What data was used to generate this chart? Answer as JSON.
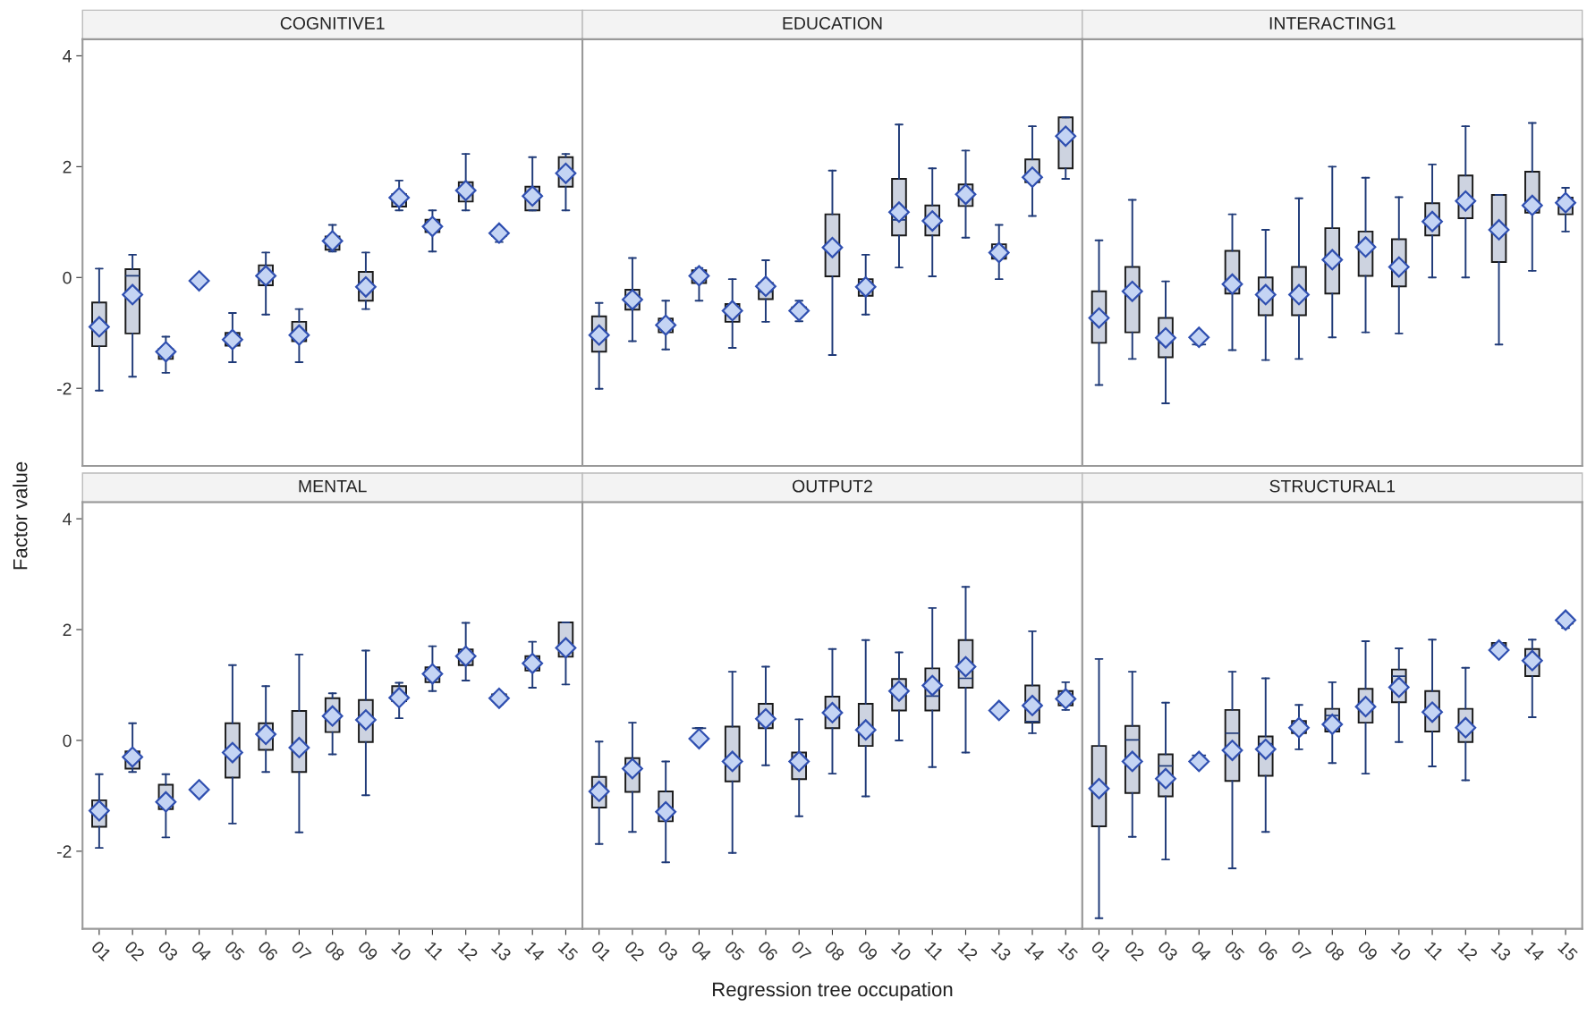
{
  "chart_data": [
    {
      "type": "box",
      "title": "COGNITIVE1",
      "ylabel": "Factor value",
      "tick_labels": "y",
      "color": "#cdd3e0",
      "marker": "diamond",
      "ylim": [
        -3.4,
        4.3
      ],
      "yticks": [
        -2,
        0,
        2,
        4
      ],
      "categories": [
        "01",
        "02",
        "03",
        "04",
        "05",
        "06",
        "07",
        "08",
        "09",
        "10",
        "11",
        "12",
        "13",
        "14",
        "15"
      ],
      "boxes": [
        {
          "low": -2.04,
          "q1": -1.24,
          "median": -0.89,
          "q3": -0.45,
          "high": 0.16,
          "mean": -0.89
        },
        {
          "low": -1.79,
          "q1": -1.01,
          "median": 0.03,
          "q3": 0.15,
          "high": 0.41,
          "mean": -0.31
        },
        {
          "low": -1.72,
          "q1": -1.47,
          "median": -1.34,
          "q3": -1.29,
          "high": -1.07,
          "mean": -1.34
        },
        {
          "low": -0.06,
          "q1": -0.06,
          "median": -0.06,
          "q3": -0.06,
          "high": -0.06,
          "mean": -0.06
        },
        {
          "low": -1.53,
          "q1": -1.23,
          "median": -1.12,
          "q3": -1.0,
          "high": -0.64,
          "mean": -1.12
        },
        {
          "low": -0.67,
          "q1": -0.14,
          "median": 0.04,
          "q3": 0.22,
          "high": 0.45,
          "mean": 0.03
        },
        {
          "low": -1.53,
          "q1": -1.15,
          "median": -1.04,
          "q3": -0.8,
          "high": -0.57,
          "mean": -1.04
        },
        {
          "low": 0.47,
          "q1": 0.5,
          "median": 0.66,
          "q3": 0.74,
          "high": 0.95,
          "mean": 0.66
        },
        {
          "low": -0.57,
          "q1": -0.42,
          "median": -0.17,
          "q3": 0.1,
          "high": 0.45,
          "mean": -0.17
        },
        {
          "low": 1.21,
          "q1": 1.28,
          "median": 1.38,
          "q3": 1.5,
          "high": 1.75,
          "mean": 1.44
        },
        {
          "low": 0.47,
          "q1": 0.82,
          "median": 0.93,
          "q3": 1.04,
          "high": 1.21,
          "mean": 0.92
        },
        {
          "low": 1.21,
          "q1": 1.37,
          "median": 1.58,
          "q3": 1.72,
          "high": 2.23,
          "mean": 1.57
        },
        {
          "low": 0.64,
          "q1": 0.75,
          "median": 0.8,
          "q3": 0.82,
          "high": 0.9,
          "mean": 0.8
        },
        {
          "low": 1.21,
          "q1": 1.21,
          "median": 1.44,
          "q3": 1.64,
          "high": 2.17,
          "mean": 1.47
        },
        {
          "low": 1.21,
          "q1": 1.64,
          "median": 1.88,
          "q3": 2.17,
          "high": 2.23,
          "mean": 1.88
        }
      ]
    },
    {
      "type": "box",
      "title": "EDUCATION",
      "tick_labels": false,
      "color": "#cdd3e0",
      "marker": "diamond",
      "ylim": [
        -3.4,
        4.3
      ],
      "yticks": [
        -2,
        0,
        2,
        4
      ],
      "categories": [
        "01",
        "02",
        "03",
        "04",
        "05",
        "06",
        "07",
        "08",
        "09",
        "10",
        "11",
        "12",
        "13",
        "14",
        "15"
      ],
      "boxes": [
        {
          "low": -2.01,
          "q1": -1.34,
          "median": -1.05,
          "q3": -0.7,
          "high": -0.46,
          "mean": -1.04
        },
        {
          "low": -1.15,
          "q1": -0.58,
          "median": -0.42,
          "q3": -0.22,
          "high": 0.35,
          "mean": -0.4
        },
        {
          "low": -1.3,
          "q1": -0.99,
          "median": -0.81,
          "q3": -0.74,
          "high": -0.42,
          "mean": -0.86
        },
        {
          "low": -0.42,
          "q1": -0.1,
          "median": 0.03,
          "q3": 0.13,
          "high": 0.17,
          "mean": 0.03
        },
        {
          "low": -1.27,
          "q1": -0.8,
          "median": -0.59,
          "q3": -0.48,
          "high": -0.03,
          "mean": -0.6
        },
        {
          "low": -0.8,
          "q1": -0.39,
          "median": -0.26,
          "q3": -0.1,
          "high": 0.31,
          "mean": -0.16
        },
        {
          "low": -0.79,
          "q1": -0.63,
          "median": -0.59,
          "q3": -0.54,
          "high": -0.42,
          "mean": -0.6
        },
        {
          "low": -1.4,
          "q1": 0.02,
          "median": 0.5,
          "q3": 1.14,
          "high": 1.93,
          "mean": 0.54
        },
        {
          "low": -0.67,
          "q1": -0.33,
          "median": -0.16,
          "q3": -0.03,
          "high": 0.41,
          "mean": -0.17
        },
        {
          "low": 0.18,
          "q1": 0.76,
          "median": 1.04,
          "q3": 1.78,
          "high": 2.76,
          "mean": 1.18
        },
        {
          "low": 0.02,
          "q1": 0.76,
          "median": 1.01,
          "q3": 1.3,
          "high": 1.97,
          "mean": 1.02
        },
        {
          "low": 0.72,
          "q1": 1.29,
          "median": 1.46,
          "q3": 1.68,
          "high": 2.29,
          "mean": 1.5
        },
        {
          "low": -0.03,
          "q1": 0.34,
          "median": 0.44,
          "q3": 0.6,
          "high": 0.95,
          "mean": 0.45
        },
        {
          "low": 1.11,
          "q1": 1.72,
          "median": 1.78,
          "q3": 2.13,
          "high": 2.73,
          "mean": 1.81
        },
        {
          "low": 1.78,
          "q1": 1.97,
          "median": 2.55,
          "q3": 2.89,
          "high": 2.89,
          "mean": 2.55
        }
      ]
    },
    {
      "type": "box",
      "title": "INTERACTING1",
      "tick_labels": false,
      "color": "#cdd3e0",
      "marker": "diamond",
      "ylim": [
        -3.4,
        4.3
      ],
      "yticks": [
        -2,
        0,
        2,
        4
      ],
      "categories": [
        "01",
        "02",
        "03",
        "04",
        "05",
        "06",
        "07",
        "08",
        "09",
        "10",
        "11",
        "12",
        "13",
        "14",
        "15"
      ],
      "boxes": [
        {
          "low": -1.94,
          "q1": -1.18,
          "median": -0.73,
          "q3": -0.25,
          "high": 0.67,
          "mean": -0.73
        },
        {
          "low": -1.47,
          "q1": -0.99,
          "median": -0.25,
          "q3": 0.19,
          "high": 1.4,
          "mean": -0.25
        },
        {
          "low": -2.27,
          "q1": -1.44,
          "median": -1.18,
          "q3": -0.73,
          "high": -0.07,
          "mean": -1.09
        },
        {
          "low": -1.21,
          "q1": -1.21,
          "median": -1.21,
          "q3": -1.21,
          "high": -1.21,
          "mean": -1.08
        },
        {
          "low": -1.31,
          "q1": -0.29,
          "median": -0.12,
          "q3": 0.48,
          "high": 1.14,
          "mean": -0.12
        },
        {
          "low": -1.49,
          "q1": -0.68,
          "median": -0.31,
          "q3": 0.0,
          "high": 0.86,
          "mean": -0.31
        },
        {
          "low": -1.47,
          "q1": -0.68,
          "median": -0.31,
          "q3": 0.19,
          "high": 1.43,
          "mean": -0.31
        },
        {
          "low": -1.08,
          "q1": -0.29,
          "median": 0.32,
          "q3": 0.89,
          "high": 2.0,
          "mean": 0.32
        },
        {
          "low": -0.99,
          "q1": 0.03,
          "median": 0.62,
          "q3": 0.83,
          "high": 1.8,
          "mean": 0.55
        },
        {
          "low": -1.01,
          "q1": -0.16,
          "median": 0.19,
          "q3": 0.69,
          "high": 1.45,
          "mean": 0.19
        },
        {
          "low": 0.0,
          "q1": 0.76,
          "median": 0.99,
          "q3": 1.34,
          "high": 2.04,
          "mean": 1.01
        },
        {
          "low": 0.0,
          "q1": 1.07,
          "median": 1.38,
          "q3": 1.84,
          "high": 2.73,
          "mean": 1.38
        },
        {
          "low": -1.21,
          "q1": 0.28,
          "median": 0.86,
          "q3": 1.49,
          "high": 1.49,
          "mean": 0.86
        },
        {
          "low": 0.12,
          "q1": 1.17,
          "median": 1.3,
          "q3": 1.91,
          "high": 2.79,
          "mean": 1.3
        },
        {
          "low": 0.83,
          "q1": 1.14,
          "median": 1.35,
          "q3": 1.44,
          "high": 1.62,
          "mean": 1.35
        }
      ]
    },
    {
      "type": "box",
      "title": "MENTAL",
      "color": "#cdd3e0",
      "marker": "diamond",
      "ylim": [
        -3.4,
        4.3
      ],
      "yticks": [
        -2,
        0,
        2,
        4
      ],
      "categories": [
        "01",
        "02",
        "03",
        "04",
        "05",
        "06",
        "07",
        "08",
        "09",
        "10",
        "11",
        "12",
        "13",
        "14",
        "15"
      ],
      "boxes": [
        {
          "low": -1.94,
          "q1": -1.56,
          "median": -1.27,
          "q3": -1.08,
          "high": -0.61,
          "mean": -1.27
        },
        {
          "low": -0.57,
          "q1": -0.51,
          "median": -0.3,
          "q3": -0.2,
          "high": 0.31,
          "mean": -0.3
        },
        {
          "low": -1.75,
          "q1": -1.24,
          "median": -1.11,
          "q3": -0.8,
          "high": -0.61,
          "mean": -1.11
        },
        {
          "low": -0.89,
          "q1": -0.89,
          "median": -0.89,
          "q3": -0.89,
          "high": -0.89,
          "mean": -0.89
        },
        {
          "low": -1.5,
          "q1": -0.67,
          "median": -0.22,
          "q3": 0.31,
          "high": 1.36,
          "mean": -0.22
        },
        {
          "low": -0.57,
          "q1": -0.17,
          "median": 0.03,
          "q3": 0.31,
          "high": 0.98,
          "mean": 0.11
        },
        {
          "low": -1.66,
          "q1": -0.57,
          "median": -0.12,
          "q3": 0.53,
          "high": 1.55,
          "mean": -0.13
        },
        {
          "low": -0.25,
          "q1": 0.15,
          "median": 0.44,
          "q3": 0.76,
          "high": 0.85,
          "mean": 0.44
        },
        {
          "low": -0.99,
          "q1": -0.03,
          "median": 0.37,
          "q3": 0.73,
          "high": 1.62,
          "mean": 0.37
        },
        {
          "low": 0.4,
          "q1": 0.71,
          "median": 0.85,
          "q3": 0.98,
          "high": 1.04,
          "mean": 0.77
        },
        {
          "low": 0.89,
          "q1": 1.05,
          "median": 1.2,
          "q3": 1.32,
          "high": 1.7,
          "mean": 1.2
        },
        {
          "low": 1.08,
          "q1": 1.36,
          "median": 1.52,
          "q3": 1.64,
          "high": 2.12,
          "mean": 1.52
        },
        {
          "low": 0.65,
          "q1": 0.72,
          "median": 0.78,
          "q3": 0.83,
          "high": 0.83,
          "mean": 0.76
        },
        {
          "low": 0.95,
          "q1": 1.26,
          "median": 1.39,
          "q3": 1.52,
          "high": 1.78,
          "mean": 1.39
        },
        {
          "low": 1.01,
          "q1": 1.51,
          "median": 1.67,
          "q3": 2.13,
          "high": 2.13,
          "mean": 1.67
        }
      ]
    },
    {
      "type": "box",
      "title": "OUTPUT2",
      "xlabel": "Regression tree occupation",
      "tick_labels": "x",
      "color": "#cdd3e0",
      "marker": "diamond",
      "ylim": [
        -3.4,
        4.3
      ],
      "yticks": [
        -2,
        0,
        2,
        4
      ],
      "categories": [
        "01",
        "02",
        "03",
        "04",
        "05",
        "06",
        "07",
        "08",
        "09",
        "10",
        "11",
        "12",
        "13",
        "14",
        "15"
      ],
      "boxes": [
        {
          "low": -1.87,
          "q1": -1.21,
          "median": -0.93,
          "q3": -0.66,
          "high": -0.02,
          "mean": -0.92
        },
        {
          "low": -1.65,
          "q1": -0.93,
          "median": -0.51,
          "q3": -0.32,
          "high": 0.32,
          "mean": -0.51
        },
        {
          "low": -2.2,
          "q1": -1.46,
          "median": -1.29,
          "q3": -0.92,
          "high": -0.38,
          "mean": -1.29
        },
        {
          "low": 0.22,
          "q1": 0.22,
          "median": 0.22,
          "q3": 0.22,
          "high": 0.22,
          "mean": 0.03
        },
        {
          "low": -2.03,
          "q1": -0.74,
          "median": -0.38,
          "q3": 0.25,
          "high": 1.24,
          "mean": -0.38
        },
        {
          "low": -0.45,
          "q1": 0.22,
          "median": 0.39,
          "q3": 0.66,
          "high": 1.33,
          "mean": 0.39
        },
        {
          "low": -1.37,
          "q1": -0.7,
          "median": -0.38,
          "q3": -0.22,
          "high": 0.38,
          "mean": -0.38
        },
        {
          "low": -0.6,
          "q1": 0.22,
          "median": 0.5,
          "q3": 0.79,
          "high": 1.65,
          "mean": 0.5
        },
        {
          "low": -1.01,
          "q1": -0.1,
          "median": 0.19,
          "q3": 0.66,
          "high": 1.81,
          "mean": 0.19
        },
        {
          "low": 0.0,
          "q1": 0.54,
          "median": 0.91,
          "q3": 1.11,
          "high": 1.59,
          "mean": 0.89
        },
        {
          "low": -0.48,
          "q1": 0.54,
          "median": 0.8,
          "q3": 1.3,
          "high": 2.39,
          "mean": 0.99
        },
        {
          "low": -0.22,
          "q1": 0.95,
          "median": 1.12,
          "q3": 1.81,
          "high": 2.77,
          "mean": 1.33
        },
        {
          "low": 0.54,
          "q1": 0.54,
          "median": 0.54,
          "q3": 0.54,
          "high": 0.54,
          "mean": 0.54
        },
        {
          "low": 0.13,
          "q1": 0.32,
          "median": 0.34,
          "q3": 0.99,
          "high": 1.97,
          "mean": 0.63
        },
        {
          "low": 0.55,
          "q1": 0.63,
          "median": 0.72,
          "q3": 0.89,
          "high": 1.05,
          "mean": 0.75
        }
      ]
    },
    {
      "type": "box",
      "title": "STRUCTURAL1",
      "tick_labels": "x",
      "color": "#cdd3e0",
      "marker": "diamond",
      "ylim": [
        -3.4,
        4.3
      ],
      "yticks": [
        -2,
        0,
        2,
        4
      ],
      "categories": [
        "01",
        "02",
        "03",
        "04",
        "05",
        "06",
        "07",
        "08",
        "09",
        "10",
        "11",
        "12",
        "13",
        "14",
        "15"
      ],
      "boxes": [
        {
          "low": -3.21,
          "q1": -1.55,
          "median": -0.87,
          "q3": -0.1,
          "high": 1.47,
          "mean": -0.87
        },
        {
          "low": -1.74,
          "q1": -0.95,
          "median": 0.01,
          "q3": 0.26,
          "high": 1.24,
          "mean": -0.38
        },
        {
          "low": -2.15,
          "q1": -1.01,
          "median": -0.46,
          "q3": -0.25,
          "high": 0.68,
          "mean": -0.69
        },
        {
          "low": -0.27,
          "q1": -0.27,
          "median": -0.27,
          "q3": -0.27,
          "high": -0.27,
          "mean": -0.38
        },
        {
          "low": -2.31,
          "q1": -0.73,
          "median": 0.13,
          "q3": 0.55,
          "high": 1.24,
          "mean": -0.18
        },
        {
          "low": -1.65,
          "q1": -0.64,
          "median": -0.06,
          "q3": 0.07,
          "high": 1.12,
          "mean": -0.16
        },
        {
          "low": -0.16,
          "q1": 0.13,
          "median": 0.23,
          "q3": 0.35,
          "high": 0.64,
          "mean": 0.23
        },
        {
          "low": -0.41,
          "q1": 0.16,
          "median": 0.45,
          "q3": 0.57,
          "high": 1.05,
          "mean": 0.29
        },
        {
          "low": -0.6,
          "q1": 0.32,
          "median": 0.63,
          "q3": 0.93,
          "high": 1.79,
          "mean": 0.61
        },
        {
          "low": -0.03,
          "q1": 0.69,
          "median": 1.16,
          "q3": 1.28,
          "high": 1.66,
          "mean": 0.96
        },
        {
          "low": -0.47,
          "q1": 0.16,
          "median": 0.51,
          "q3": 0.89,
          "high": 1.82,
          "mean": 0.51
        },
        {
          "low": -0.72,
          "q1": -0.03,
          "median": 0.23,
          "q3": 0.57,
          "high": 1.31,
          "mean": 0.23
        },
        {
          "low": 1.68,
          "q1": 1.68,
          "median": 1.72,
          "q3": 1.76,
          "high": 1.76,
          "mean": 1.63
        },
        {
          "low": 0.42,
          "q1": 1.16,
          "median": 1.44,
          "q3": 1.65,
          "high": 1.82,
          "mean": 1.44
        },
        {
          "low": 2.03,
          "q1": 2.11,
          "median": 2.16,
          "q3": 2.21,
          "high": 2.23,
          "mean": 2.17
        }
      ]
    }
  ]
}
